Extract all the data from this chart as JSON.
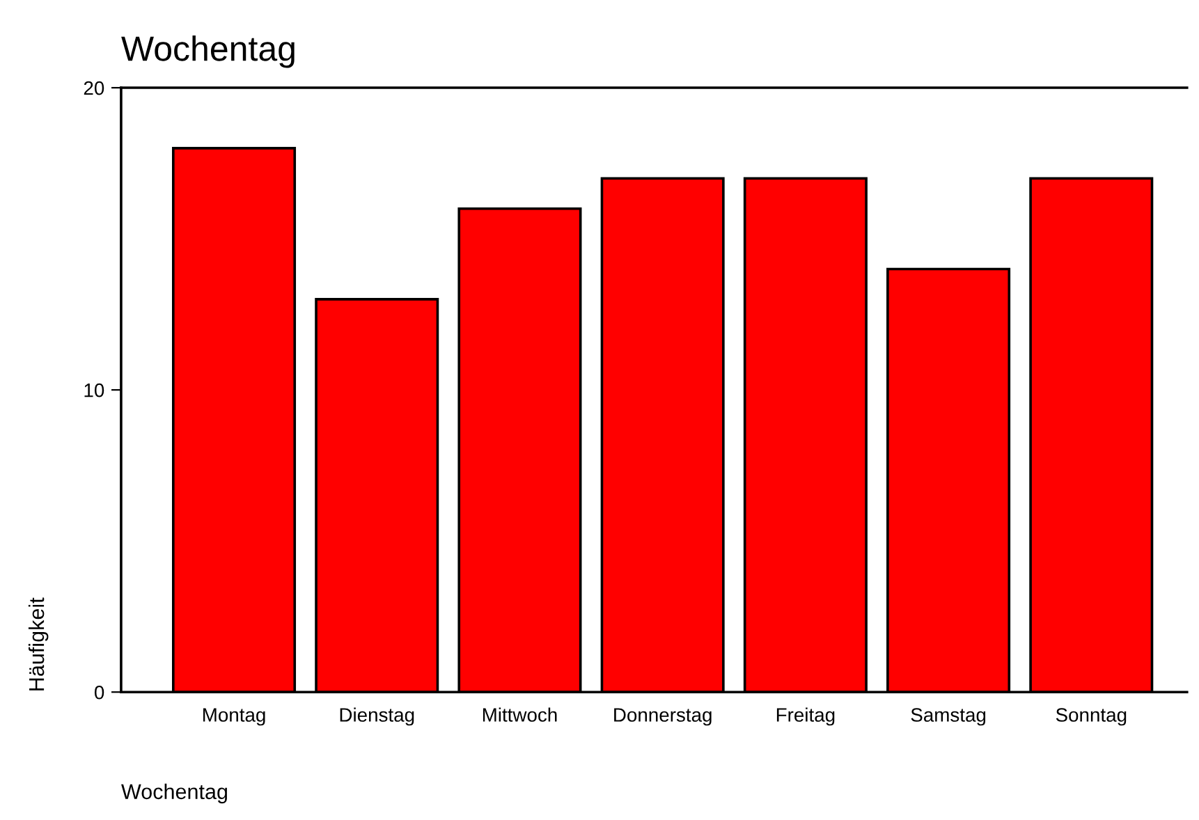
{
  "chart_data": {
    "type": "bar",
    "title": "Wochentag",
    "xlabel": "Wochentag",
    "ylabel": "Häufigkeit",
    "categories": [
      "Montag",
      "Dienstag",
      "Mittwoch",
      "Donnerstag",
      "Freitag",
      "Samstag",
      "Sonntag"
    ],
    "values": [
      18,
      13,
      16,
      17,
      17,
      14,
      17
    ],
    "color": "#ff0000",
    "ylim": [
      0,
      20
    ],
    "yticks": [
      0,
      10,
      20
    ],
    "grid": false,
    "legend": false
  }
}
